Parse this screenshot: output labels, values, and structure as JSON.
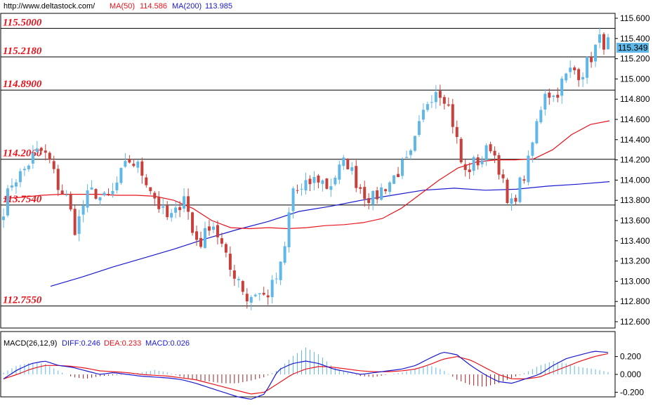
{
  "header": {
    "source": "http://www.deltastock.com/",
    "ma50_label": "MA(50)",
    "ma50_value": "114.586",
    "ma200_label": "MA(200)",
    "ma200_value": "113.985",
    "ma50_color": "#e8141c",
    "ma200_color": "#1a1ad0"
  },
  "current_price": "115.349",
  "macd_header": {
    "name": "MACD(26,12,9)",
    "diff": "DIFF:0.246",
    "dea": "DEA:0.233",
    "macd": "MACD:0.026"
  },
  "chart_data": [
    {
      "type": "candlestick",
      "ylim": [
        112.5,
        115.7
      ],
      "y_ticks": [
        "115.600",
        "115.400",
        "115.200",
        "115.000",
        "114.800",
        "114.600",
        "114.400",
        "114.200",
        "114.000",
        "113.800",
        "113.600",
        "113.400",
        "113.200",
        "113.000",
        "112.800",
        "112.600"
      ],
      "y_tick_values": [
        115.6,
        115.4,
        115.2,
        115.0,
        114.8,
        114.6,
        114.4,
        114.2,
        114.0,
        113.8,
        113.6,
        113.4,
        113.2,
        113.0,
        112.8,
        112.6
      ],
      "levels": [
        {
          "label": "115.5000",
          "value": 115.5
        },
        {
          "label": "115.2180",
          "value": 115.218
        },
        {
          "label": "114.8900",
          "value": 114.89
        },
        {
          "label": "114.2060",
          "value": 114.206
        },
        {
          "label": "113.7540",
          "value": 113.754
        },
        {
          "label": "112.7550",
          "value": 112.755
        }
      ],
      "bull_color": "#5fb8e8",
      "bear_color": "#c8403c",
      "close_anchors": [
        113.72,
        114.0,
        114.06,
        114.2,
        114.3,
        114.21,
        113.95,
        113.82,
        113.5,
        113.8,
        113.9,
        113.8,
        113.85,
        114.05,
        114.2,
        114.12,
        113.98,
        113.78,
        113.62,
        113.65,
        113.88,
        113.45,
        113.38,
        113.62,
        113.4,
        113.12,
        113.05,
        112.82,
        112.9,
        112.84,
        112.98,
        113.2,
        113.92,
        113.88,
        113.98,
        114.02,
        113.92,
        114.08,
        114.2,
        114.0,
        113.87,
        113.81,
        113.92,
        114.0,
        114.12,
        114.19,
        114.5,
        114.79,
        114.92,
        114.82,
        114.5,
        114.05,
        114.16,
        114.21,
        114.35,
        114.11,
        113.68,
        113.92,
        114.1,
        114.52,
        114.9,
        114.82,
        114.98,
        115.1,
        115.05,
        115.2,
        115.38,
        115.35
      ],
      "ma50": [
        113.82,
        113.83,
        113.85,
        113.86,
        113.86,
        113.86,
        113.85,
        113.85,
        113.84,
        113.8,
        113.72,
        113.6,
        113.53,
        113.52,
        113.53,
        113.52,
        113.53,
        113.55,
        113.56,
        113.58,
        113.62,
        113.72,
        113.86,
        114.0,
        114.12,
        114.18,
        114.2,
        114.2,
        114.21,
        114.3,
        114.45,
        114.55,
        114.586
      ],
      "ma200": [
        112.95,
        113.04,
        113.14,
        113.23,
        113.32,
        113.42,
        113.51,
        113.59,
        113.69,
        113.74,
        113.8,
        113.85,
        113.9,
        113.92,
        113.9,
        113.91,
        113.94,
        113.96,
        113.985
      ]
    },
    {
      "type": "bar+line",
      "title": "MACD(26,12,9)",
      "ylim": [
        -0.3,
        0.4
      ],
      "y_ticks": [
        "0.200",
        "0.000",
        "-0.200"
      ],
      "y_tick_values": [
        0.2,
        0.0,
        -0.2
      ],
      "series": [
        {
          "name": "DIFF",
          "color": "#1a1ad0",
          "values": [
            -0.05,
            0.05,
            0.12,
            0.15,
            0.1,
            0.08,
            0.04,
            0.0,
            0.02,
            0.0,
            -0.02,
            -0.03,
            -0.04,
            -0.06,
            -0.1,
            -0.15,
            -0.2,
            -0.25,
            -0.28,
            -0.22,
            0.05,
            0.12,
            0.15,
            0.12,
            0.06,
            0.03,
            0.0,
            0.02,
            0.04,
            0.06,
            0.1,
            0.18,
            0.25,
            0.22,
            0.1,
            0.0,
            -0.08,
            -0.1,
            -0.05,
            0.0,
            0.1,
            0.18,
            0.22,
            0.26,
            0.246
          ]
        },
        {
          "name": "DEA",
          "color": "#e8141c",
          "values": [
            -0.05,
            0.0,
            0.06,
            0.1,
            0.1,
            0.09,
            0.07,
            0.04,
            0.03,
            0.02,
            0.0,
            -0.01,
            -0.02,
            -0.04,
            -0.06,
            -0.1,
            -0.14,
            -0.18,
            -0.22,
            -0.2,
            -0.1,
            0.0,
            0.06,
            0.09,
            0.08,
            0.06,
            0.04,
            0.03,
            0.03,
            0.04,
            0.06,
            0.11,
            0.17,
            0.2,
            0.16,
            0.08,
            0.0,
            -0.05,
            -0.05,
            -0.03,
            0.03,
            0.09,
            0.15,
            0.2,
            0.233
          ]
        },
        {
          "name": "MACD",
          "color_pos": "#5fb8e8",
          "color_neg": "#a01f23",
          "values": [
            0.02,
            0.1,
            0.13,
            0.12,
            0.04,
            -0.03,
            -0.05,
            -0.02,
            -0.01,
            0.0,
            0.02,
            0.05,
            0.02,
            -0.03,
            -0.06,
            -0.08,
            -0.1,
            -0.1,
            -0.07,
            -0.03,
            0.05,
            0.2,
            0.3,
            0.22,
            0.08,
            0.02,
            -0.02,
            -0.03,
            0.0,
            0.02,
            0.06,
            0.1,
            0.05,
            -0.06,
            -0.12,
            -0.14,
            -0.1,
            -0.04,
            0.02,
            0.1,
            0.15,
            0.12,
            0.08,
            0.06,
            0.026
          ]
        }
      ]
    }
  ]
}
